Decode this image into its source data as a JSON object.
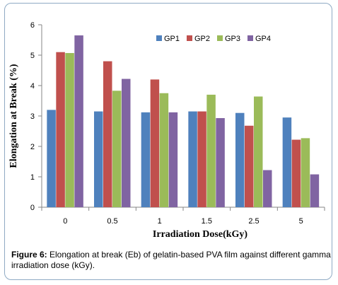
{
  "chart_data": {
    "type": "bar",
    "title": "",
    "xlabel": "Irradiation Dose(kGy)",
    "ylabel": "Elongation at Break (%)",
    "ylim": [
      0,
      6
    ],
    "yticks": [
      "0",
      "1",
      "2",
      "3",
      "4",
      "5",
      "6"
    ],
    "categories": [
      "0",
      "0.5",
      "1",
      "1.5",
      "2.5",
      "5"
    ],
    "grid": false,
    "legend_position": "top-right",
    "series": [
      {
        "name": "GP1",
        "color": "#4f81bd",
        "values": [
          3.2,
          3.15,
          3.12,
          3.15,
          3.1,
          2.95
        ]
      },
      {
        "name": "GP2",
        "color": "#c0504d",
        "values": [
          5.1,
          4.8,
          4.2,
          3.15,
          2.68,
          2.22
        ]
      },
      {
        "name": "GP3",
        "color": "#9bbb59",
        "values": [
          5.07,
          3.83,
          3.75,
          3.7,
          3.64,
          2.27
        ]
      },
      {
        "name": "GP4",
        "color": "#8064a2",
        "values": [
          5.65,
          4.22,
          3.12,
          2.93,
          1.22,
          1.08
        ]
      }
    ]
  },
  "caption": {
    "label": "Figure 6:",
    "text": " Elongation at break (Eb) of gelatin-based PVA film against different gamma irradiation dose (kGy)."
  }
}
